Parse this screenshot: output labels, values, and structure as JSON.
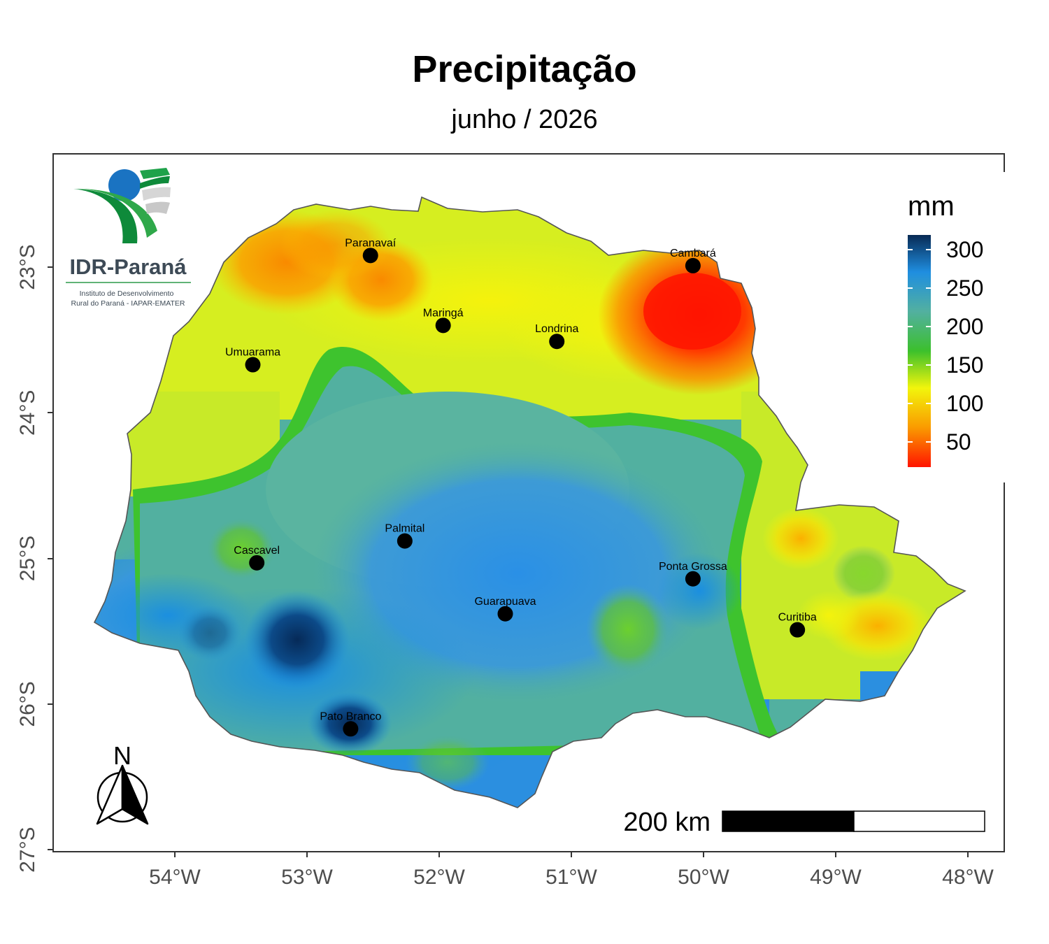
{
  "title": "Precipitação",
  "subtitle": "junho / 2026",
  "logo": {
    "name": "IDR-Paraná",
    "tagline_line1": "Instituto de Desenvolvimento",
    "tagline_line2": "Rural do Paraná - IAPAR-EMATER"
  },
  "legend": {
    "title": "mm",
    "ticks": [
      "300",
      "250",
      "200",
      "150",
      "100",
      "50"
    ],
    "colors": [
      "#082a54",
      "#1f8ee0",
      "#52b0a0",
      "#3cc02c",
      "#f2f50c",
      "#fa9a00",
      "#ff1400"
    ]
  },
  "axes": {
    "x_ticks": [
      "54°W",
      "53°W",
      "52°W",
      "51°W",
      "50°W",
      "49°W",
      "48°W"
    ],
    "y_ticks": [
      "23°S",
      "24°S",
      "25°S",
      "26°S",
      "27°S"
    ]
  },
  "cities": [
    {
      "name": "Paranavaí",
      "lon": -52.52,
      "lat": -22.92
    },
    {
      "name": "Cambará",
      "lon": -50.08,
      "lat": -22.99
    },
    {
      "name": "Maringá",
      "lon": -51.97,
      "lat": -23.4
    },
    {
      "name": "Londrina",
      "lon": -51.11,
      "lat": -23.51
    },
    {
      "name": "Umuarama",
      "lon": -53.41,
      "lat": -23.67
    },
    {
      "name": "Palmital",
      "lon": -52.26,
      "lat": -24.88
    },
    {
      "name": "Cascavel",
      "lon": -53.38,
      "lat": -25.03
    },
    {
      "name": "Ponta Grossa",
      "lon": -50.08,
      "lat": -25.14
    },
    {
      "name": "Guarapuava",
      "lon": -51.5,
      "lat": -25.38
    },
    {
      "name": "Curitiba",
      "lon": -49.29,
      "lat": -25.49
    },
    {
      "name": "Pato Branco",
      "lon": -52.67,
      "lat": -26.17
    }
  ],
  "scale_bar": {
    "label": "200 km"
  },
  "north_arrow": {
    "label": "N"
  }
}
